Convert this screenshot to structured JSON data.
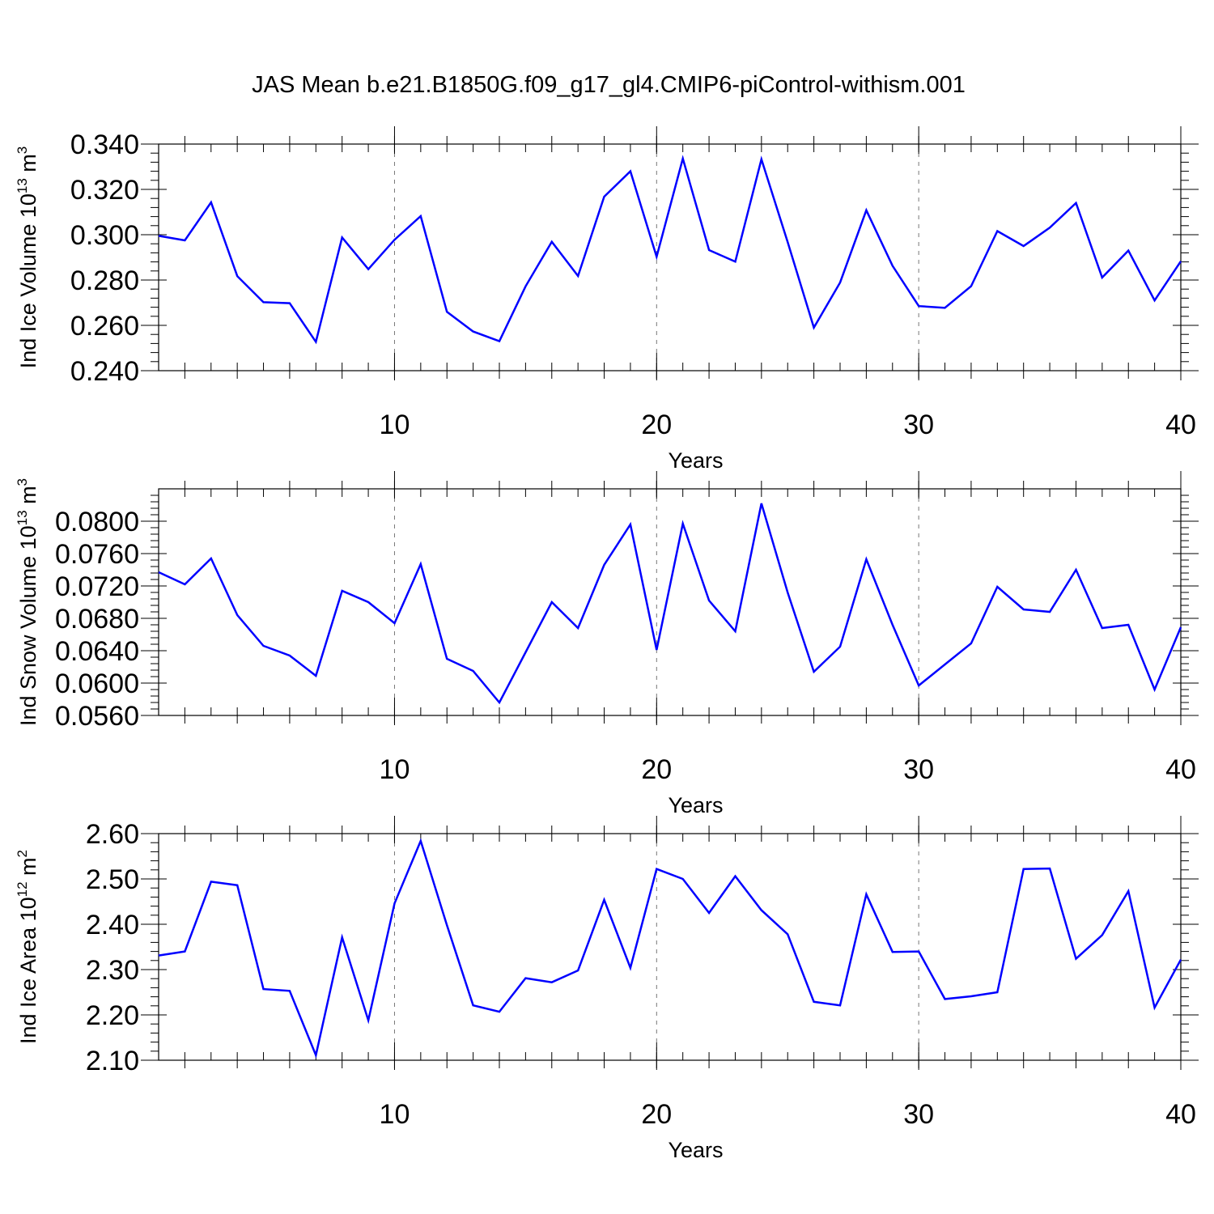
{
  "figure_title": "JAS Mean b.e21.B1850G.f09_g17_gl4.CMIP6-piControl-withism.001",
  "line_color": "#0000ff",
  "chart_data": [
    {
      "type": "line",
      "ylabel": {
        "main": "Ind Ice Volume 10",
        "exp": "13",
        "unit": " m",
        "unit_exp": "3"
      },
      "xlabel": "Years",
      "xlim": [
        1,
        40
      ],
      "ylim": [
        0.24,
        0.34
      ],
      "yticks": [
        0.24,
        0.26,
        0.28,
        0.3,
        0.32,
        0.34
      ],
      "ytick_labels": [
        "0.240",
        "0.260",
        "0.280",
        "0.300",
        "0.320",
        "0.340"
      ],
      "xticks": [
        10,
        20,
        30,
        40
      ],
      "xtick_labels": [
        "10",
        "20",
        "30",
        "40"
      ],
      "grid_x": [
        10,
        20,
        30
      ],
      "x": [
        1,
        2,
        3,
        4,
        5,
        6,
        7,
        8,
        9,
        10,
        11,
        12,
        13,
        14,
        15,
        16,
        17,
        18,
        19,
        20,
        21,
        22,
        23,
        24,
        25,
        26,
        27,
        28,
        29,
        30,
        31,
        32,
        33,
        34,
        35,
        36,
        37,
        38,
        39,
        40
      ],
      "values": [
        0.2995,
        0.2975,
        0.3143,
        0.2817,
        0.2702,
        0.2698,
        0.2527,
        0.2988,
        0.2848,
        0.2978,
        0.3082,
        0.266,
        0.2573,
        0.253,
        0.2772,
        0.2969,
        0.2818,
        0.3168,
        0.328,
        0.2903,
        0.3336,
        0.2932,
        0.2881,
        0.3333,
        0.2968,
        0.259,
        0.2789,
        0.3108,
        0.2863,
        0.2685,
        0.2677,
        0.2773,
        0.3016,
        0.295,
        0.3031,
        0.314,
        0.2811,
        0.293,
        0.271,
        0.2883
      ]
    },
    {
      "type": "line",
      "ylabel": {
        "main": "Ind Snow Volume 10",
        "exp": "13",
        "unit": " m",
        "unit_exp": "3"
      },
      "xlabel": "Years",
      "xlim": [
        1,
        40
      ],
      "ylim": [
        0.056,
        0.084
      ],
      "yticks": [
        0.056,
        0.06,
        0.064,
        0.068,
        0.072,
        0.076,
        0.08
      ],
      "ytick_labels": [
        "0.0560",
        "0.0600",
        "0.0640",
        "0.0680",
        "0.0720",
        "0.0760",
        "0.0800"
      ],
      "xticks": [
        10,
        20,
        30,
        40
      ],
      "xtick_labels": [
        "10",
        "20",
        "30",
        "40"
      ],
      "grid_x": [
        10,
        20,
        30
      ],
      "x": [
        1,
        2,
        3,
        4,
        5,
        6,
        7,
        8,
        9,
        10,
        11,
        12,
        13,
        14,
        15,
        16,
        17,
        18,
        19,
        20,
        21,
        22,
        23,
        24,
        25,
        26,
        27,
        28,
        29,
        30,
        31,
        32,
        33,
        34,
        35,
        36,
        37,
        38,
        39,
        40
      ],
      "values": [
        0.0737,
        0.0722,
        0.0754,
        0.0684,
        0.0646,
        0.0634,
        0.0609,
        0.0714,
        0.07,
        0.0674,
        0.0747,
        0.063,
        0.0615,
        0.0576,
        0.0638,
        0.07,
        0.0668,
        0.0746,
        0.0796,
        0.0641,
        0.0797,
        0.0702,
        0.0664,
        0.0822,
        0.0712,
        0.0614,
        0.0645,
        0.0753,
        0.0672,
        0.0597,
        0.0623,
        0.0649,
        0.0719,
        0.0691,
        0.0688,
        0.074,
        0.0668,
        0.0672,
        0.0592,
        0.0669
      ]
    },
    {
      "type": "line",
      "ylabel": {
        "main": "Ind Ice Area 10",
        "exp": "12",
        "unit": " m",
        "unit_exp": "2"
      },
      "xlabel": "Years",
      "xlim": [
        1,
        40
      ],
      "ylim": [
        2.1,
        2.6
      ],
      "yticks": [
        2.1,
        2.2,
        2.3,
        2.4,
        2.5,
        2.6
      ],
      "ytick_labels": [
        "2.10",
        "2.20",
        "2.30",
        "2.40",
        "2.50",
        "2.60"
      ],
      "xticks": [
        10,
        20,
        30,
        40
      ],
      "xtick_labels": [
        "10",
        "20",
        "30",
        "40"
      ],
      "grid_x": [
        10,
        20,
        30
      ],
      "x": [
        1,
        2,
        3,
        4,
        5,
        6,
        7,
        8,
        9,
        10,
        11,
        12,
        13,
        14,
        15,
        16,
        17,
        18,
        19,
        20,
        21,
        22,
        23,
        24,
        25,
        26,
        27,
        28,
        29,
        30,
        31,
        32,
        33,
        34,
        35,
        36,
        37,
        38,
        39,
        40
      ],
      "values": [
        2.331,
        2.34,
        2.494,
        2.486,
        2.257,
        2.253,
        2.111,
        2.371,
        2.188,
        2.446,
        2.584,
        2.398,
        2.221,
        2.207,
        2.281,
        2.272,
        2.298,
        2.454,
        2.304,
        2.522,
        2.5,
        2.425,
        2.506,
        2.431,
        2.378,
        2.229,
        2.221,
        2.466,
        2.339,
        2.34,
        2.235,
        2.241,
        2.25,
        2.522,
        2.523,
        2.324,
        2.376,
        2.473,
        2.216,
        2.322
      ]
    }
  ]
}
